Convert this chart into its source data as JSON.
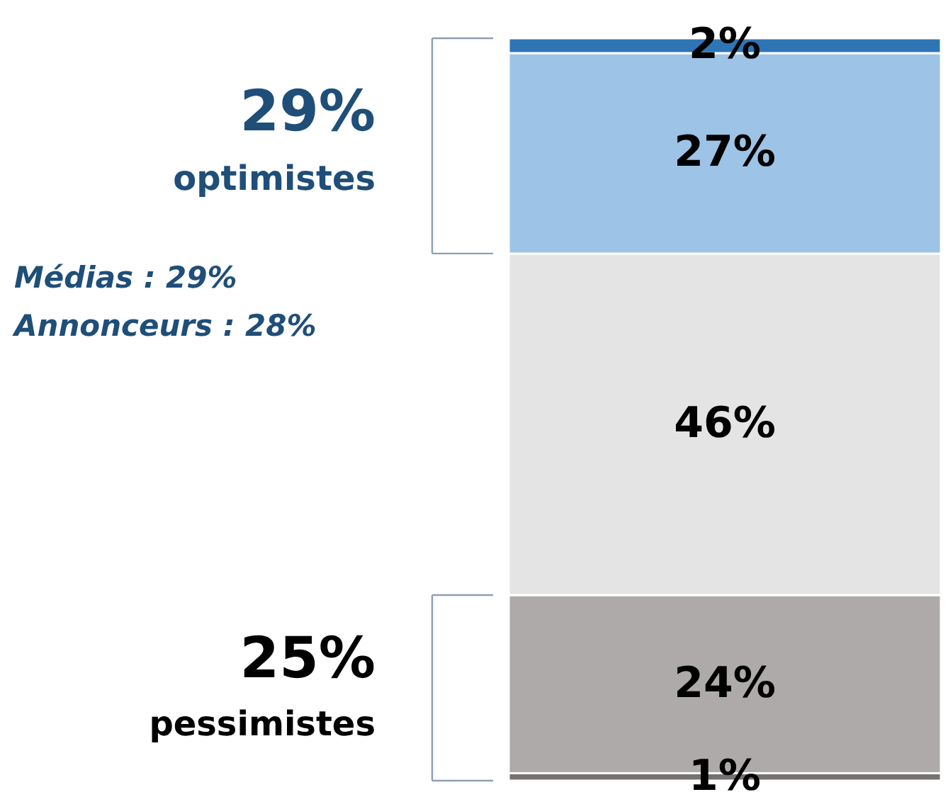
{
  "chart_data": {
    "type": "bar",
    "stacked": true,
    "categories": [
      null
    ],
    "legend": false,
    "tick_labels": false,
    "series": [
      {
        "color": "#767171",
        "values": [
          1
        ],
        "value_labels": [
          "1%"
        ]
      },
      {
        "color": "#aeaaaa",
        "values": [
          24
        ],
        "value_labels": [
          "24%"
        ]
      },
      {
        "color": "#e4e4e4",
        "values": [
          46
        ],
        "value_labels": [
          "46%"
        ]
      },
      {
        "color": "#9dc3e6",
        "values": [
          27
        ],
        "value_labels": [
          "27%"
        ]
      },
      {
        "color": "#2e75b6",
        "values": [
          2
        ],
        "value_labels": [
          "2%"
        ]
      }
    ],
    "annotations": [
      "29%",
      "optimistes",
      "Médias : 29%",
      "Annonceurs : 28%",
      "25%",
      "pessimistes"
    ]
  }
}
